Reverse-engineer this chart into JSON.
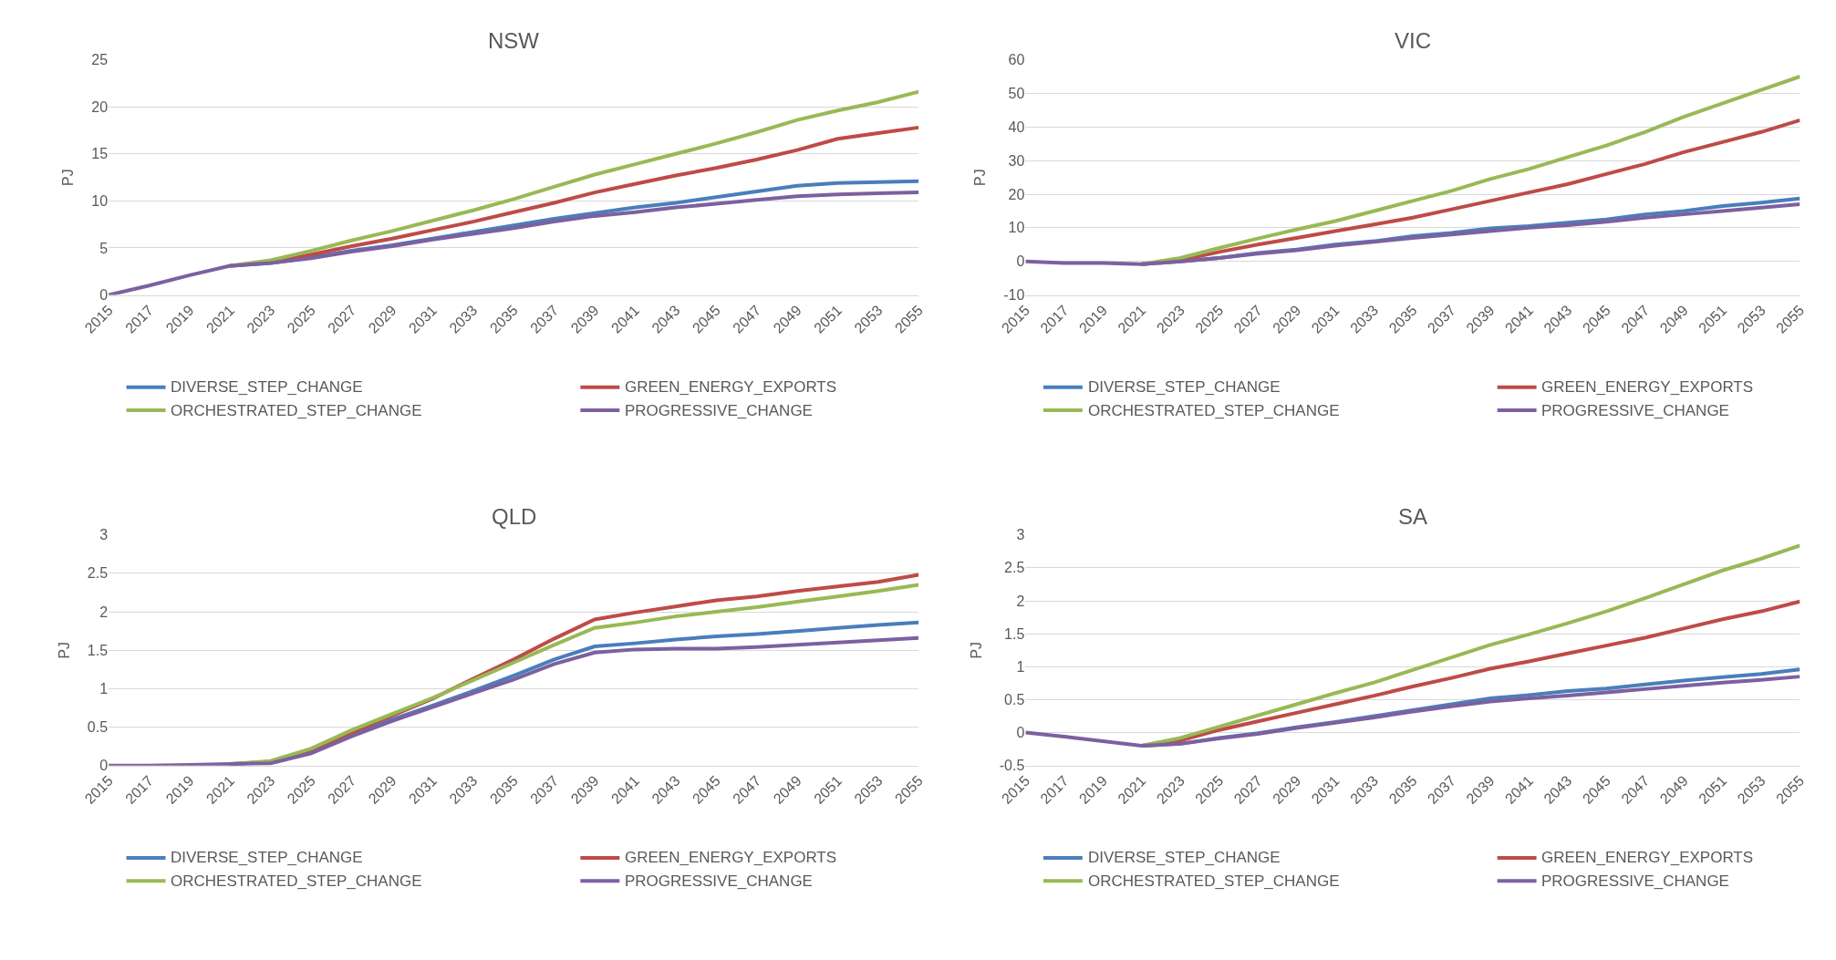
{
  "chart_data": [
    {
      "type": "line",
      "title": "NSW",
      "ylabel": "PJ",
      "x": [
        2015,
        2017,
        2019,
        2021,
        2023,
        2025,
        2027,
        2029,
        2031,
        2033,
        2035,
        2037,
        2039,
        2041,
        2043,
        2045,
        2047,
        2049,
        2051,
        2053,
        2055
      ],
      "xlim": [
        2015,
        2055
      ],
      "xticks": [
        2015,
        2017,
        2019,
        2021,
        2023,
        2025,
        2027,
        2029,
        2031,
        2033,
        2035,
        2037,
        2039,
        2041,
        2043,
        2045,
        2047,
        2049,
        2051,
        2053,
        2055
      ],
      "ylim": [
        0,
        25
      ],
      "yticks": [
        0,
        5,
        10,
        15,
        20,
        25
      ],
      "grid": "y",
      "legend": "bottom",
      "series": [
        {
          "name": "DIVERSE_STEP_CHANGE",
          "color": "#4a7ebb",
          "values": [
            null,
            null,
            null,
            3.1,
            3.4,
            4.0,
            4.7,
            5.3,
            6.0,
            6.7,
            7.4,
            8.1,
            8.7,
            9.3,
            9.8,
            10.4,
            11.0,
            11.6,
            11.9,
            12.0,
            12.1
          ]
        },
        {
          "name": "GREEN_ENERGY_EXPORTS",
          "color": "#be4b48",
          "values": [
            null,
            null,
            null,
            3.1,
            3.5,
            4.3,
            5.2,
            6.0,
            6.9,
            7.8,
            8.8,
            9.8,
            10.9,
            11.8,
            12.7,
            13.5,
            14.4,
            15.4,
            16.6,
            17.2,
            17.8
          ]
        },
        {
          "name": "ORCHESTRATED_STEP_CHANGE",
          "color": "#98b954",
          "values": [
            null,
            null,
            null,
            3.1,
            3.7,
            4.7,
            5.8,
            6.8,
            7.9,
            9.0,
            10.2,
            11.5,
            12.8,
            13.9,
            15.0,
            16.1,
            17.3,
            18.6,
            19.6,
            20.5,
            21.6
          ]
        },
        {
          "name": "PROGRESSIVE_CHANGE",
          "color": "#7d60a0",
          "values": [
            0,
            1.0,
            2.1,
            3.1,
            3.4,
            3.9,
            4.6,
            5.2,
            5.9,
            6.5,
            7.1,
            7.8,
            8.4,
            8.8,
            9.3,
            9.7,
            10.1,
            10.5,
            10.7,
            10.8,
            10.9
          ]
        }
      ]
    },
    {
      "type": "line",
      "title": "VIC",
      "ylabel": "PJ",
      "x": [
        2015,
        2017,
        2019,
        2021,
        2023,
        2025,
        2027,
        2029,
        2031,
        2033,
        2035,
        2037,
        2039,
        2041,
        2043,
        2045,
        2047,
        2049,
        2051,
        2053,
        2055
      ],
      "xlim": [
        2015,
        2055
      ],
      "xticks": [
        2015,
        2017,
        2019,
        2021,
        2023,
        2025,
        2027,
        2029,
        2031,
        2033,
        2035,
        2037,
        2039,
        2041,
        2043,
        2045,
        2047,
        2049,
        2051,
        2053,
        2055
      ],
      "ylim": [
        -10,
        60
      ],
      "yticks": [
        -10,
        0,
        10,
        20,
        30,
        40,
        50,
        60
      ],
      "grid": "y",
      "legend": "bottom",
      "series": [
        {
          "name": "DIVERSE_STEP_CHANGE",
          "color": "#4a7ebb",
          "values": [
            null,
            null,
            null,
            -0.8,
            0,
            1,
            2.5,
            3.5,
            5,
            6,
            7.5,
            8.5,
            9.8,
            10.5,
            11.5,
            12.5,
            14,
            15,
            16.5,
            17.5,
            18.7
          ]
        },
        {
          "name": "GREEN_ENERGY_EXPORTS",
          "color": "#be4b48",
          "values": [
            null,
            null,
            null,
            -0.8,
            0.3,
            2.8,
            5,
            7,
            9,
            11,
            13,
            15.5,
            18,
            20.5,
            23,
            26,
            29,
            32.5,
            35.5,
            38.5,
            42
          ]
        },
        {
          "name": "ORCHESTRATED_STEP_CHANGE",
          "color": "#98b954",
          "values": [
            null,
            null,
            null,
            -0.8,
            1,
            4,
            6.8,
            9.5,
            12,
            15,
            18,
            21,
            24.5,
            27.5,
            31,
            34.5,
            38.5,
            43,
            47,
            51,
            55
          ]
        },
        {
          "name": "PROGRESSIVE_CHANGE",
          "color": "#7d60a0",
          "values": [
            0,
            -0.5,
            -0.5,
            -0.8,
            0,
            1,
            2.3,
            3.3,
            4.7,
            5.8,
            7,
            8,
            9,
            10,
            10.8,
            11.8,
            13,
            14,
            15,
            16,
            17
          ]
        }
      ]
    },
    {
      "type": "line",
      "title": "QLD",
      "ylabel": "PJ",
      "x": [
        2015,
        2017,
        2019,
        2021,
        2023,
        2025,
        2027,
        2029,
        2031,
        2033,
        2035,
        2037,
        2039,
        2041,
        2043,
        2045,
        2047,
        2049,
        2051,
        2053,
        2055
      ],
      "xlim": [
        2015,
        2055
      ],
      "xticks": [
        2015,
        2017,
        2019,
        2021,
        2023,
        2025,
        2027,
        2029,
        2031,
        2033,
        2035,
        2037,
        2039,
        2041,
        2043,
        2045,
        2047,
        2049,
        2051,
        2053,
        2055
      ],
      "ylim": [
        0,
        3
      ],
      "yticks": [
        0,
        0.5,
        1,
        1.5,
        2,
        2.5,
        3
      ],
      "grid": "y",
      "legend": "bottom",
      "series": [
        {
          "name": "DIVERSE_STEP_CHANGE",
          "color": "#4a7ebb",
          "values": [
            null,
            null,
            null,
            0.02,
            0.04,
            0.18,
            0.4,
            0.6,
            0.78,
            0.97,
            1.17,
            1.38,
            1.55,
            1.59,
            1.64,
            1.68,
            1.71,
            1.75,
            1.79,
            1.83,
            1.86
          ]
        },
        {
          "name": "GREEN_ENERGY_EXPORTS",
          "color": "#be4b48",
          "values": [
            null,
            null,
            null,
            0.02,
            0.05,
            0.2,
            0.43,
            0.65,
            0.87,
            1.13,
            1.38,
            1.65,
            1.9,
            1.99,
            2.07,
            2.15,
            2.2,
            2.27,
            2.33,
            2.39,
            2.48
          ]
        },
        {
          "name": "ORCHESTRATED_STEP_CHANGE",
          "color": "#98b954",
          "values": [
            null,
            null,
            null,
            0.02,
            0.06,
            0.22,
            0.46,
            0.67,
            0.88,
            1.11,
            1.34,
            1.57,
            1.79,
            1.86,
            1.94,
            2.0,
            2.06,
            2.13,
            2.2,
            2.27,
            2.35
          ]
        },
        {
          "name": "PROGRESSIVE_CHANGE",
          "color": "#7d60a0",
          "values": [
            0,
            0,
            0.01,
            0.02,
            0.03,
            0.16,
            0.38,
            0.58,
            0.76,
            0.94,
            1.12,
            1.32,
            1.47,
            1.51,
            1.52,
            1.52,
            1.54,
            1.57,
            1.6,
            1.63,
            1.66
          ]
        }
      ]
    },
    {
      "type": "line",
      "title": "SA",
      "ylabel": "PJ",
      "x": [
        2015,
        2017,
        2019,
        2021,
        2023,
        2025,
        2027,
        2029,
        2031,
        2033,
        2035,
        2037,
        2039,
        2041,
        2043,
        2045,
        2047,
        2049,
        2051,
        2053,
        2055
      ],
      "xlim": [
        2015,
        2055
      ],
      "xticks": [
        2015,
        2017,
        2019,
        2021,
        2023,
        2025,
        2027,
        2029,
        2031,
        2033,
        2035,
        2037,
        2039,
        2041,
        2043,
        2045,
        2047,
        2049,
        2051,
        2053,
        2055
      ],
      "ylim": [
        -0.5,
        3
      ],
      "yticks": [
        -0.5,
        0,
        0.5,
        1,
        1.5,
        2,
        2.5,
        3
      ],
      "grid": "y",
      "legend": "bottom",
      "series": [
        {
          "name": "DIVERSE_STEP_CHANGE",
          "color": "#4a7ebb",
          "values": [
            null,
            null,
            null,
            -0.2,
            -0.17,
            -0.08,
            -0.01,
            0.08,
            0.16,
            0.25,
            0.34,
            0.43,
            0.52,
            0.57,
            0.63,
            0.67,
            0.73,
            0.79,
            0.84,
            0.89,
            0.96
          ]
        },
        {
          "name": "GREEN_ENERGY_EXPORTS",
          "color": "#be4b48",
          "values": [
            null,
            null,
            null,
            -0.2,
            -0.12,
            0.04,
            0.17,
            0.3,
            0.43,
            0.56,
            0.7,
            0.83,
            0.97,
            1.08,
            1.2,
            1.32,
            1.44,
            1.58,
            1.72,
            1.84,
            1.99
          ]
        },
        {
          "name": "ORCHESTRATED_STEP_CHANGE",
          "color": "#98b954",
          "values": [
            null,
            null,
            null,
            -0.2,
            -0.08,
            0.09,
            0.26,
            0.43,
            0.6,
            0.76,
            0.95,
            1.14,
            1.33,
            1.49,
            1.66,
            1.84,
            2.04,
            2.25,
            2.46,
            2.64,
            2.84
          ]
        },
        {
          "name": "PROGRESSIVE_CHANGE",
          "color": "#7d60a0",
          "values": [
            0,
            -0.06,
            -0.13,
            -0.2,
            -0.17,
            -0.09,
            -0.02,
            0.07,
            0.15,
            0.23,
            0.32,
            0.4,
            0.47,
            0.52,
            0.56,
            0.61,
            0.66,
            0.71,
            0.76,
            0.8,
            0.85
          ]
        }
      ]
    }
  ]
}
